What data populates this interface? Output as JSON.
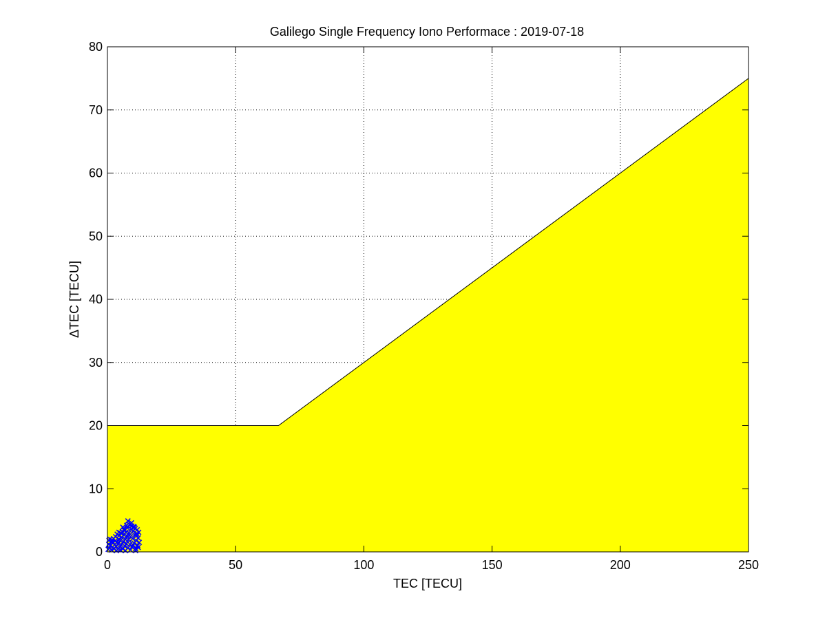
{
  "chart_data": {
    "type": "area",
    "title": "Galilego Single Frequency Iono Performace : 2019-07-18",
    "xlabel": "TEC [TECU]",
    "ylabel": "ΔTEC [TECU]",
    "xlim": [
      0,
      250
    ],
    "ylim": [
      0,
      80
    ],
    "xticks": [
      0,
      50,
      100,
      150,
      200,
      250
    ],
    "yticks": [
      0,
      10,
      20,
      30,
      40,
      50,
      60,
      70,
      80
    ],
    "grid": true,
    "envelope": {
      "fill_color": "#ffff00",
      "line_color": "#000000",
      "x": [
        0,
        66.7,
        250
      ],
      "y": [
        20,
        20,
        75
      ]
    },
    "scatter": {
      "marker": "x",
      "color": "#0000ff",
      "points": [
        [
          0.3,
          0.4
        ],
        [
          0.5,
          1.2
        ],
        [
          0.6,
          1.8
        ],
        [
          0.8,
          0.6
        ],
        [
          1.0,
          2.0
        ],
        [
          1.2,
          1.0
        ],
        [
          1.4,
          1.6
        ],
        [
          1.6,
          0.3
        ],
        [
          1.8,
          1.9
        ],
        [
          2.0,
          0.8
        ],
        [
          2.2,
          1.4
        ],
        [
          2.4,
          2.1
        ],
        [
          2.6,
          0.5
        ],
        [
          2.8,
          1.1
        ],
        [
          3.0,
          1.7
        ],
        [
          3.2,
          2.4
        ],
        [
          3.4,
          0.9
        ],
        [
          3.6,
          1.5
        ],
        [
          3.8,
          2.8
        ],
        [
          4.0,
          0.4
        ],
        [
          4.2,
          1.3
        ],
        [
          4.4,
          2.0
        ],
        [
          4.6,
          2.6
        ],
        [
          4.8,
          0.7
        ],
        [
          5.0,
          1.8
        ],
        [
          5.2,
          3.0
        ],
        [
          5.4,
          1.1
        ],
        [
          5.6,
          2.3
        ],
        [
          5.8,
          3.2
        ],
        [
          6.0,
          0.5
        ],
        [
          6.2,
          1.6
        ],
        [
          6.4,
          2.7
        ],
        [
          6.6,
          3.4
        ],
        [
          6.8,
          0.9
        ],
        [
          7.0,
          2.0
        ],
        [
          7.2,
          3.1
        ],
        [
          7.4,
          1.3
        ],
        [
          7.6,
          2.5
        ],
        [
          7.8,
          3.8
        ],
        [
          8.0,
          0.6
        ],
        [
          8.2,
          1.9
        ],
        [
          8.4,
          3.0
        ],
        [
          8.6,
          4.3
        ],
        [
          8.8,
          1.2
        ],
        [
          9.0,
          2.4
        ],
        [
          9.2,
          3.6
        ],
        [
          9.4,
          4.6
        ],
        [
          9.6,
          0.8
        ],
        [
          9.8,
          2.1
        ],
        [
          10.0,
          3.3
        ],
        [
          10.2,
          4.0
        ],
        [
          10.4,
          1.4
        ],
        [
          10.6,
          2.7
        ],
        [
          10.8,
          3.7
        ],
        [
          11.0,
          0.5
        ],
        [
          11.2,
          1.8
        ],
        [
          11.4,
          2.9
        ],
        [
          11.6,
          3.5
        ],
        [
          11.8,
          1.0
        ],
        [
          12.0,
          2.2
        ],
        [
          12.2,
          3.1
        ],
        [
          12.4,
          1.5
        ],
        [
          8.0,
          4.9
        ],
        [
          7.5,
          4.2
        ],
        [
          6.5,
          3.6
        ],
        [
          5.5,
          2.9
        ],
        [
          9.5,
          4.1
        ],
        [
          10.5,
          3.9
        ],
        [
          11.5,
          2.6
        ],
        [
          12.0,
          0.7
        ],
        [
          3.5,
          0.2
        ],
        [
          5.0,
          0.3
        ],
        [
          7.0,
          0.2
        ],
        [
          9.0,
          0.3
        ],
        [
          11.0,
          0.2
        ],
        [
          2.0,
          1.6
        ],
        [
          4.5,
          3.1
        ],
        [
          6.0,
          3.9
        ],
        [
          8.5,
          2.6
        ],
        [
          10.0,
          1.1
        ]
      ]
    }
  }
}
